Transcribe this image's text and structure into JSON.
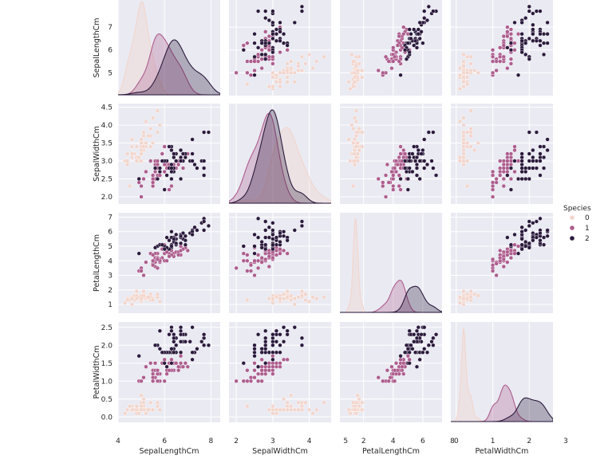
{
  "chart_data": {
    "type": "pairplot",
    "variables": [
      "SepalLengthCm",
      "SepalWidthCm",
      "PetalLengthCm",
      "PetalWidthCm"
    ],
    "axis_ranges": {
      "SepalLengthCm": [
        4.0,
        8.4
      ],
      "SepalWidthCm": [
        1.8,
        4.6
      ],
      "PetalLengthCm": [
        0.4,
        7.3
      ],
      "PetalWidthCm": [
        -0.15,
        2.65
      ]
    },
    "tick_labels": {
      "x": {
        "SepalLengthCm": [
          "4",
          "6",
          "8"
        ],
        "SepalWidthCm": [
          "2",
          "3",
          "4",
          "5"
        ],
        "PetalLengthCm": [
          "2",
          "4",
          "6",
          "8"
        ],
        "PetalWidthCm": [
          "0",
          "1",
          "2",
          "3"
        ]
      },
      "y": {
        "SepalLengthCm": [
          "5",
          "6",
          "7"
        ],
        "SepalWidthCm": [
          "2.0",
          "2.5",
          "3.0",
          "3.5",
          "4.0",
          "4.5"
        ],
        "PetalLengthCm": [
          "1",
          "2",
          "3",
          "4",
          "5",
          "6",
          "7"
        ],
        "PetalWidthCm": [
          "0.0",
          "0.5",
          "1.0",
          "1.5",
          "2.0",
          "2.5"
        ]
      }
    },
    "diag_kind": "kde",
    "grid": true,
    "hue": "Species",
    "legend": {
      "title": "Species",
      "position": "right",
      "entries": [
        {
          "label": "0",
          "color": "#f2d5cc"
        },
        {
          "label": "1",
          "color": "#ad5d8e"
        },
        {
          "label": "2",
          "color": "#2b1a3c"
        }
      ]
    },
    "series": [
      {
        "name": "0",
        "points": [
          [
            5.1,
            3.5,
            1.4,
            0.2
          ],
          [
            4.9,
            3.0,
            1.4,
            0.2
          ],
          [
            4.7,
            3.2,
            1.3,
            0.2
          ],
          [
            4.6,
            3.1,
            1.5,
            0.2
          ],
          [
            5.0,
            3.6,
            1.4,
            0.2
          ],
          [
            5.4,
            3.9,
            1.7,
            0.4
          ],
          [
            4.6,
            3.4,
            1.4,
            0.3
          ],
          [
            5.0,
            3.4,
            1.5,
            0.2
          ],
          [
            4.4,
            2.9,
            1.4,
            0.2
          ],
          [
            4.9,
            3.1,
            1.5,
            0.1
          ],
          [
            5.4,
            3.7,
            1.5,
            0.2
          ],
          [
            4.8,
            3.4,
            1.6,
            0.2
          ],
          [
            4.8,
            3.0,
            1.4,
            0.1
          ],
          [
            4.3,
            3.0,
            1.1,
            0.1
          ],
          [
            5.8,
            4.0,
            1.2,
            0.2
          ],
          [
            5.7,
            4.4,
            1.5,
            0.4
          ],
          [
            5.4,
            3.9,
            1.3,
            0.4
          ],
          [
            5.1,
            3.5,
            1.4,
            0.3
          ],
          [
            5.7,
            3.8,
            1.7,
            0.3
          ],
          [
            5.1,
            3.8,
            1.5,
            0.3
          ],
          [
            5.4,
            3.4,
            1.7,
            0.2
          ],
          [
            5.1,
            3.7,
            1.5,
            0.4
          ],
          [
            4.6,
            3.6,
            1.0,
            0.2
          ],
          [
            5.1,
            3.3,
            1.7,
            0.5
          ],
          [
            4.8,
            3.4,
            1.9,
            0.2
          ],
          [
            5.0,
            3.0,
            1.6,
            0.2
          ],
          [
            5.0,
            3.4,
            1.6,
            0.4
          ],
          [
            5.2,
            3.5,
            1.5,
            0.2
          ],
          [
            5.2,
            3.4,
            1.4,
            0.2
          ],
          [
            4.7,
            3.2,
            1.6,
            0.2
          ],
          [
            4.8,
            3.1,
            1.6,
            0.2
          ],
          [
            5.4,
            3.4,
            1.5,
            0.4
          ],
          [
            5.2,
            4.1,
            1.5,
            0.1
          ],
          [
            5.5,
            4.2,
            1.4,
            0.2
          ],
          [
            4.9,
            3.1,
            1.5,
            0.1
          ],
          [
            5.0,
            3.2,
            1.2,
            0.2
          ],
          [
            5.5,
            3.5,
            1.3,
            0.2
          ],
          [
            4.4,
            3.0,
            1.3,
            0.2
          ],
          [
            5.1,
            3.4,
            1.5,
            0.2
          ],
          [
            5.0,
            3.5,
            1.3,
            0.3
          ],
          [
            4.5,
            2.3,
            1.3,
            0.3
          ],
          [
            4.4,
            3.2,
            1.3,
            0.2
          ],
          [
            5.0,
            3.5,
            1.6,
            0.6
          ],
          [
            5.1,
            3.8,
            1.9,
            0.4
          ],
          [
            4.8,
            3.0,
            1.4,
            0.3
          ],
          [
            5.1,
            3.8,
            1.6,
            0.2
          ],
          [
            4.6,
            3.2,
            1.4,
            0.2
          ],
          [
            5.3,
            3.7,
            1.5,
            0.2
          ],
          [
            5.0,
            3.3,
            1.4,
            0.2
          ]
        ]
      },
      {
        "name": "1",
        "points": [
          [
            7.0,
            3.2,
            4.7,
            1.4
          ],
          [
            6.4,
            3.2,
            4.5,
            1.5
          ],
          [
            6.9,
            3.1,
            4.9,
            1.5
          ],
          [
            5.5,
            2.3,
            4.0,
            1.3
          ],
          [
            6.5,
            2.8,
            4.6,
            1.5
          ],
          [
            5.7,
            2.8,
            4.5,
            1.3
          ],
          [
            6.3,
            3.3,
            4.7,
            1.6
          ],
          [
            4.9,
            2.4,
            3.3,
            1.0
          ],
          [
            6.6,
            2.9,
            4.6,
            1.3
          ],
          [
            5.2,
            2.7,
            3.9,
            1.4
          ],
          [
            5.0,
            2.0,
            3.5,
            1.0
          ],
          [
            5.9,
            3.0,
            4.2,
            1.5
          ],
          [
            6.0,
            2.2,
            4.0,
            1.0
          ],
          [
            6.1,
            2.9,
            4.7,
            1.4
          ],
          [
            5.6,
            2.9,
            3.6,
            1.3
          ],
          [
            6.7,
            3.1,
            4.4,
            1.4
          ],
          [
            5.6,
            3.0,
            4.5,
            1.5
          ],
          [
            5.8,
            2.7,
            4.1,
            1.0
          ],
          [
            6.2,
            2.2,
            4.5,
            1.5
          ],
          [
            5.6,
            2.5,
            3.9,
            1.1
          ],
          [
            5.9,
            3.2,
            4.8,
            1.8
          ],
          [
            6.1,
            2.8,
            4.0,
            1.3
          ],
          [
            6.3,
            2.5,
            4.9,
            1.5
          ],
          [
            6.1,
            2.8,
            4.7,
            1.2
          ],
          [
            6.4,
            2.9,
            4.3,
            1.3
          ],
          [
            6.6,
            3.0,
            4.4,
            1.4
          ],
          [
            6.8,
            2.8,
            4.8,
            1.4
          ],
          [
            6.7,
            3.0,
            5.0,
            1.7
          ],
          [
            6.0,
            2.9,
            4.5,
            1.5
          ],
          [
            5.7,
            2.6,
            3.5,
            1.0
          ],
          [
            5.5,
            2.4,
            3.8,
            1.1
          ],
          [
            5.5,
            2.4,
            3.7,
            1.0
          ],
          [
            5.8,
            2.7,
            3.9,
            1.2
          ],
          [
            6.0,
            2.7,
            5.1,
            1.6
          ],
          [
            5.4,
            3.0,
            4.5,
            1.5
          ],
          [
            6.0,
            3.4,
            4.5,
            1.6
          ],
          [
            6.7,
            3.1,
            4.7,
            1.5
          ],
          [
            6.3,
            2.3,
            4.4,
            1.3
          ],
          [
            5.6,
            3.0,
            4.1,
            1.3
          ],
          [
            5.5,
            2.5,
            4.0,
            1.3
          ],
          [
            5.5,
            2.6,
            4.4,
            1.2
          ],
          [
            6.1,
            3.0,
            4.6,
            1.4
          ],
          [
            5.8,
            2.6,
            4.0,
            1.2
          ],
          [
            5.0,
            2.3,
            3.3,
            1.0
          ],
          [
            5.6,
            2.7,
            4.2,
            1.3
          ],
          [
            5.7,
            3.0,
            4.2,
            1.2
          ],
          [
            5.7,
            2.9,
            4.2,
            1.3
          ],
          [
            6.2,
            2.9,
            4.3,
            1.3
          ],
          [
            5.1,
            2.5,
            3.0,
            1.1
          ],
          [
            5.7,
            2.8,
            4.1,
            1.3
          ]
        ]
      },
      {
        "name": "2",
        "points": [
          [
            6.3,
            3.3,
            6.0,
            2.5
          ],
          [
            5.8,
            2.7,
            5.1,
            1.9
          ],
          [
            7.1,
            3.0,
            5.9,
            2.1
          ],
          [
            6.3,
            2.9,
            5.6,
            1.8
          ],
          [
            6.5,
            3.0,
            5.8,
            2.2
          ],
          [
            7.6,
            3.0,
            6.6,
            2.1
          ],
          [
            4.9,
            2.5,
            4.5,
            1.7
          ],
          [
            7.3,
            2.9,
            6.3,
            1.8
          ],
          [
            6.7,
            2.5,
            5.8,
            1.8
          ],
          [
            7.2,
            3.6,
            6.1,
            2.5
          ],
          [
            6.5,
            3.2,
            5.1,
            2.0
          ],
          [
            6.4,
            2.7,
            5.3,
            1.9
          ],
          [
            6.8,
            3.0,
            5.5,
            2.1
          ],
          [
            5.7,
            2.5,
            5.0,
            2.0
          ],
          [
            5.8,
            2.8,
            5.1,
            2.4
          ],
          [
            6.4,
            3.2,
            5.3,
            2.3
          ],
          [
            6.5,
            3.0,
            5.5,
            1.8
          ],
          [
            7.7,
            3.8,
            6.7,
            2.2
          ],
          [
            7.7,
            2.6,
            6.9,
            2.3
          ],
          [
            6.0,
            2.2,
            5.0,
            1.5
          ],
          [
            6.9,
            3.2,
            5.7,
            2.3
          ],
          [
            5.6,
            2.8,
            4.9,
            2.0
          ],
          [
            7.7,
            2.8,
            6.7,
            2.0
          ],
          [
            6.3,
            2.7,
            4.9,
            1.8
          ],
          [
            6.7,
            3.3,
            5.7,
            2.1
          ],
          [
            7.2,
            3.2,
            6.0,
            1.8
          ],
          [
            6.2,
            2.8,
            4.8,
            1.8
          ],
          [
            6.1,
            3.0,
            4.9,
            1.8
          ],
          [
            6.4,
            2.8,
            5.6,
            2.1
          ],
          [
            7.2,
            3.0,
            5.8,
            1.6
          ],
          [
            7.4,
            2.8,
            6.1,
            1.9
          ],
          [
            7.9,
            3.8,
            6.4,
            2.0
          ],
          [
            6.4,
            2.8,
            5.6,
            2.2
          ],
          [
            6.3,
            2.8,
            5.1,
            1.5
          ],
          [
            6.1,
            2.6,
            5.6,
            1.4
          ],
          [
            7.7,
            3.0,
            6.1,
            2.3
          ],
          [
            6.3,
            3.4,
            5.6,
            2.4
          ],
          [
            6.4,
            3.1,
            5.5,
            1.8
          ],
          [
            6.0,
            3.0,
            4.8,
            1.8
          ],
          [
            6.9,
            3.1,
            5.4,
            2.1
          ],
          [
            6.7,
            3.1,
            5.6,
            2.4
          ],
          [
            6.9,
            3.1,
            5.1,
            2.3
          ],
          [
            6.8,
            3.2,
            5.9,
            2.3
          ],
          [
            6.7,
            3.3,
            5.7,
            2.5
          ],
          [
            6.7,
            3.0,
            5.2,
            2.3
          ],
          [
            6.3,
            2.5,
            5.0,
            1.9
          ],
          [
            6.5,
            3.0,
            5.2,
            2.0
          ],
          [
            6.2,
            3.4,
            5.4,
            2.3
          ],
          [
            5.9,
            3.0,
            5.1,
            1.8
          ]
        ]
      }
    ]
  }
}
